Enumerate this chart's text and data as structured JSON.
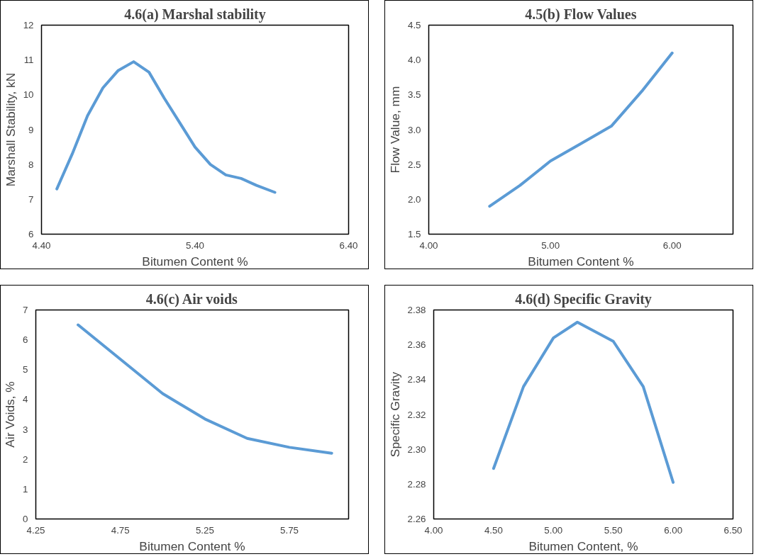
{
  "chart_data": [
    {
      "type": "line",
      "title": "4.6(a) Marshal stability",
      "xlabel": "Bitumen Content %",
      "ylabel": "Marshall Stability, kN",
      "x": [
        4.5,
        4.6,
        4.7,
        4.8,
        4.9,
        5.0,
        5.1,
        5.2,
        5.3,
        5.4,
        5.5,
        5.6,
        5.7,
        5.8,
        5.92
      ],
      "series": [
        {
          "color": "#5b9bd5",
          "values": [
            7.3,
            8.3,
            9.4,
            10.2,
            10.7,
            10.95,
            10.65,
            9.9,
            9.2,
            8.5,
            8.0,
            7.7,
            7.6,
            7.4,
            7.2
          ]
        }
      ],
      "xlim": [
        4.4,
        6.4
      ],
      "xticks": [
        {
          "value": 4.4,
          "label": "4.40"
        },
        {
          "value": 5.4,
          "label": "5.40"
        },
        {
          "value": 6.4,
          "label": "6.40"
        }
      ],
      "ylim": [
        6,
        12
      ],
      "yticks": [
        6,
        7,
        8,
        9,
        10,
        11,
        12
      ],
      "grid": false
    },
    {
      "type": "line",
      "title": "4.5(b) Flow Values",
      "xlabel": "Bitumen Content %",
      "ylabel": "Flow Value, mm",
      "x": [
        4.5,
        4.75,
        5.0,
        5.25,
        5.5,
        5.75,
        6.0
      ],
      "series": [
        {
          "color": "#5b9bd5",
          "values": [
            1.9,
            2.2,
            2.55,
            2.8,
            3.05,
            3.55,
            4.1
          ]
        }
      ],
      "xlim": [
        4.0,
        6.5
      ],
      "xticks": [
        {
          "value": 4.0,
          "label": "4.00"
        },
        {
          "value": 5.0,
          "label": "5.00"
        },
        {
          "value": 6.0,
          "label": "6.00"
        }
      ],
      "ylim": [
        1.5,
        4.5
      ],
      "yticks": [
        1.5,
        {
          "value": 2.0,
          "label": "2.0"
        },
        2.5,
        {
          "value": 3.0,
          "label": "3.0"
        },
        3.5,
        {
          "value": 4.0,
          "label": "4.0"
        },
        4.5
      ],
      "grid": false
    },
    {
      "type": "line",
      "title": "4.6(c) Air voids",
      "xlabel": "Bitumen Content %",
      "ylabel": "Air Voids, %",
      "x": [
        4.5,
        4.75,
        5.0,
        5.25,
        5.5,
        5.75,
        6.0
      ],
      "series": [
        {
          "color": "#5b9bd5",
          "values": [
            6.5,
            5.35,
            4.2,
            3.35,
            2.7,
            2.4,
            2.2
          ]
        }
      ],
      "xlim": [
        4.25,
        6.1
      ],
      "xticks": [
        4.25,
        4.75,
        5.25,
        5.75
      ],
      "ylim": [
        0,
        7
      ],
      "yticks": [
        0,
        1,
        2,
        3,
        4,
        5,
        6,
        7
      ],
      "grid": false
    },
    {
      "type": "line",
      "title": "4.6(d) Specific Gravity",
      "xlabel": "Bitumen Content, %",
      "ylabel": "Specific Gravity",
      "x": [
        4.5,
        4.75,
        5.0,
        5.2,
        5.5,
        5.75,
        6.0
      ],
      "series": [
        {
          "color": "#5b9bd5",
          "values": [
            2.289,
            2.336,
            2.364,
            2.373,
            2.362,
            2.336,
            2.281
          ]
        }
      ],
      "xlim": [
        4.0,
        6.5
      ],
      "xticks": [
        {
          "value": 4.0,
          "label": "4.00"
        },
        {
          "value": 4.5,
          "label": "4.50"
        },
        {
          "value": 5.0,
          "label": "5.00"
        },
        {
          "value": 5.5,
          "label": "5.50"
        },
        {
          "value": 6.0,
          "label": "6.00"
        },
        {
          "value": 6.5,
          "label": "6.50"
        }
      ],
      "ylim": [
        2.26,
        2.38
      ],
      "yticks": [
        2.26,
        {
          "value": 2.28,
          "label": "2.28"
        },
        {
          "value": 2.3,
          "label": "2.30"
        },
        2.32,
        2.34,
        2.36,
        2.38
      ],
      "grid": false
    }
  ]
}
